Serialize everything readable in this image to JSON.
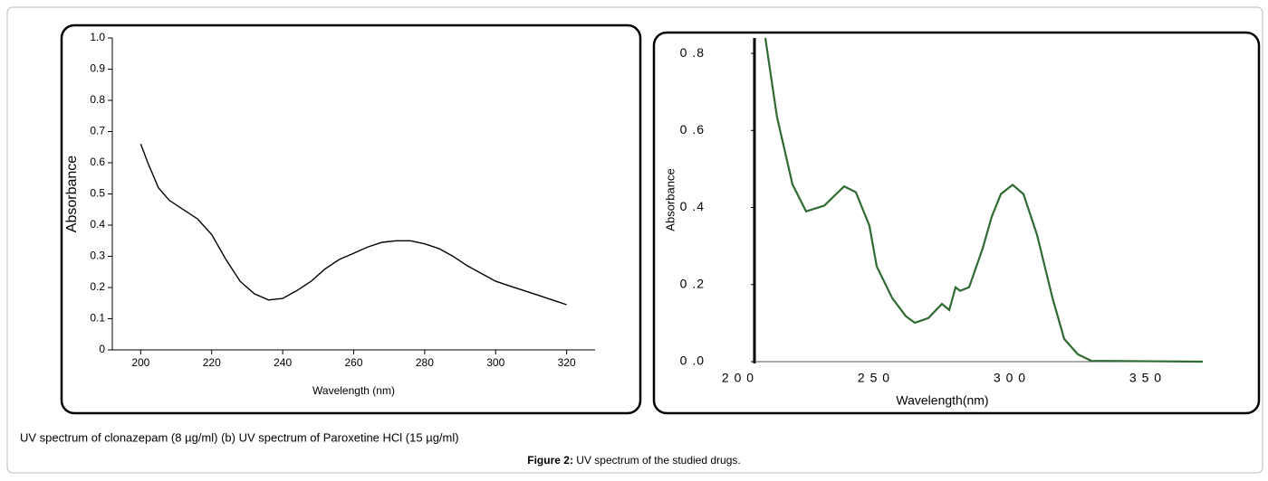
{
  "chart_data": [
    {
      "type": "line",
      "x_label": "Wavelength (nm)",
      "y_label": "Absorbance",
      "color": "#000000",
      "x": [
        200,
        202,
        205,
        208,
        212,
        216,
        220,
        224,
        228,
        232,
        236,
        240,
        244,
        248,
        252,
        256,
        260,
        264,
        268,
        272,
        276,
        280,
        284,
        288,
        292,
        296,
        300,
        304,
        308,
        312,
        316,
        320
      ],
      "values": [
        0.66,
        0.6,
        0.52,
        0.48,
        0.45,
        0.42,
        0.37,
        0.29,
        0.22,
        0.18,
        0.16,
        0.165,
        0.19,
        0.22,
        0.26,
        0.29,
        0.31,
        0.33,
        0.345,
        0.35,
        0.35,
        0.34,
        0.325,
        0.3,
        0.27,
        0.245,
        0.22,
        0.205,
        0.19,
        0.175,
        0.16,
        0.145
      ],
      "xlim": [
        192,
        328
      ],
      "xticks": [
        200,
        220,
        240,
        260,
        280,
        300,
        320
      ],
      "ylim": [
        0,
        1
      ],
      "yticks": [
        0,
        0.1,
        0.2,
        0.3,
        0.4,
        0.5,
        0.6,
        0.7,
        0.8,
        0.9,
        {
          "value": 1,
          "label": "1.0"
        }
      ]
    },
    {
      "type": "line",
      "x_label": "Wavelength(nm)",
      "y_label": "Absorbance",
      "color": "#2e6b30",
      "x": [
        210,
        214.3,
        220,
        225,
        231.7,
        239,
        243.3,
        248.3,
        251,
        256.7,
        261.7,
        265,
        270,
        275,
        277.7,
        280,
        281.7,
        285,
        290,
        293.3,
        296.7,
        301,
        305,
        310,
        315.7,
        320,
        325,
        330,
        371
      ],
      "values": [
        0.84,
        0.635,
        0.46,
        0.39,
        0.405,
        0.455,
        0.44,
        0.353,
        0.247,
        0.165,
        0.118,
        0.101,
        0.113,
        0.15,
        0.134,
        0.193,
        0.184,
        0.193,
        0.294,
        0.376,
        0.435,
        0.459,
        0.435,
        0.329,
        0.165,
        0.059,
        0.019,
        0.002,
        0
      ],
      "xlim": [
        206,
        371
      ],
      "xticks": [
        {
          "value": 200,
          "label": "2 0 0"
        },
        {
          "value": 250,
          "label": "2 5 0"
        },
        {
          "value": 300,
          "label": "3 0 0"
        },
        {
          "value": 350,
          "label": "3 5 0"
        }
      ],
      "ylim": [
        0,
        0.84
      ],
      "yticks": [
        {
          "value": 0,
          "label": "0 .0"
        },
        {
          "value": 0.2,
          "label": "0 .2"
        },
        {
          "value": 0.4,
          "label": "0 .4"
        },
        {
          "value": 0.6,
          "label": "0 .6"
        },
        {
          "value": 0.8,
          "label": "0 .8"
        }
      ]
    }
  ],
  "caption": "UV spectrum of clonazepam (8 µg/ml) (b) UV spectrum of Paroxetine HCl (15 µg/ml)",
  "figure_label": "Figure 2:",
  "figure_title": "UV spectrum of the studied drugs."
}
